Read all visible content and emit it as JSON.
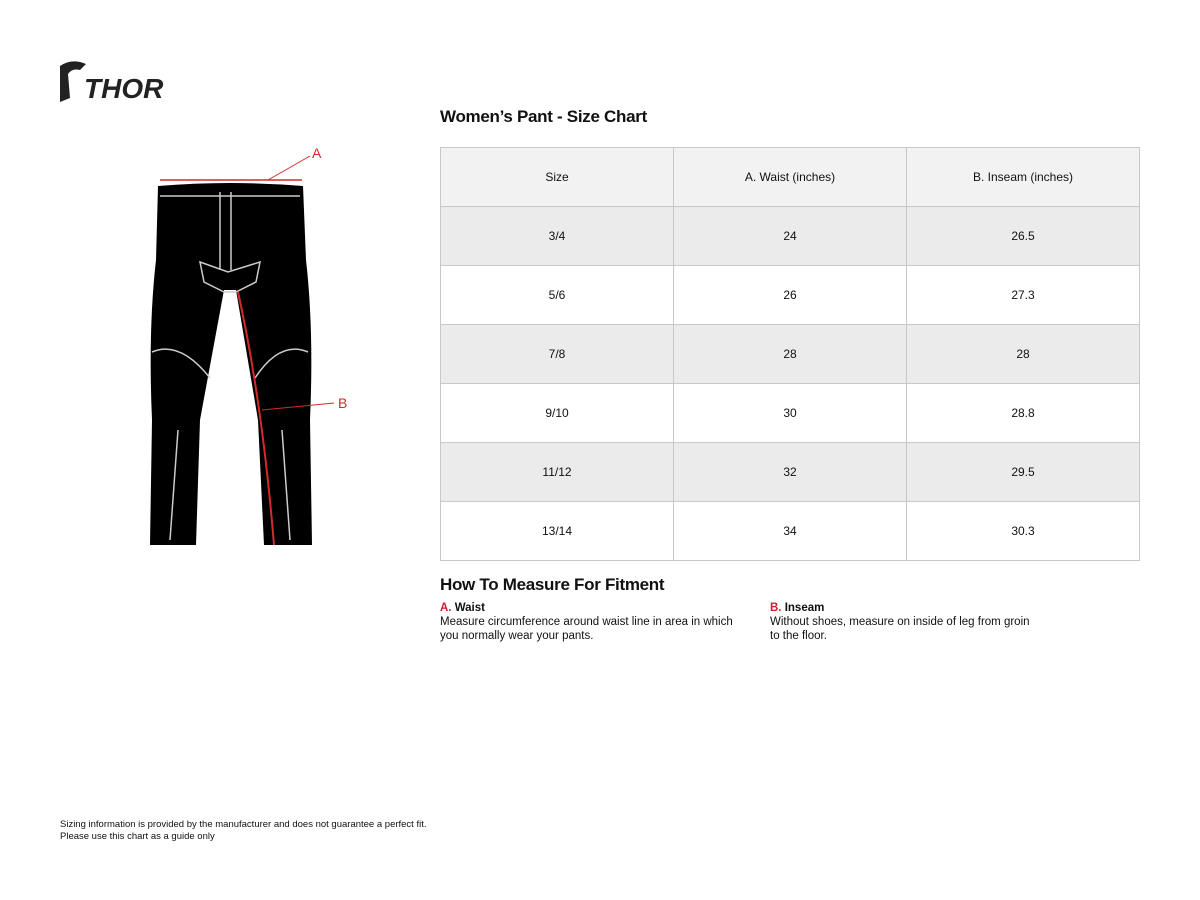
{
  "brand": {
    "logo_text": "THOR"
  },
  "diagram": {
    "label_a": "A",
    "label_b": "B"
  },
  "chart": {
    "title": "Women’s Pant - Size Chart",
    "headers": [
      "Size",
      "A. Waist (inches)",
      "B. Inseam (inches)"
    ],
    "rows": [
      [
        "3/4",
        "24",
        "26.5"
      ],
      [
        "5/6",
        "26",
        "27.3"
      ],
      [
        "7/8",
        "28",
        "28"
      ],
      [
        "9/10",
        "30",
        "28.8"
      ],
      [
        "11/12",
        "32",
        "29.5"
      ],
      [
        "13/14",
        "34",
        "30.3"
      ]
    ]
  },
  "measure": {
    "title": "How To Measure For Fitment",
    "waist": {
      "letter": "A.",
      "name": "Waist",
      "text": "Measure circumference around waist line in area in which you normally wear your pants."
    },
    "inseam": {
      "letter": "B.",
      "name": "Inseam",
      "text": "Without shoes, measure on inside of leg from groin to the floor."
    }
  },
  "footer": {
    "line1": "Sizing information is provided by the manufacturer and does not guarantee a perfect fit.",
    "line2": "Please use this chart as a guide only"
  },
  "colors": {
    "accent": "#c8202f"
  }
}
